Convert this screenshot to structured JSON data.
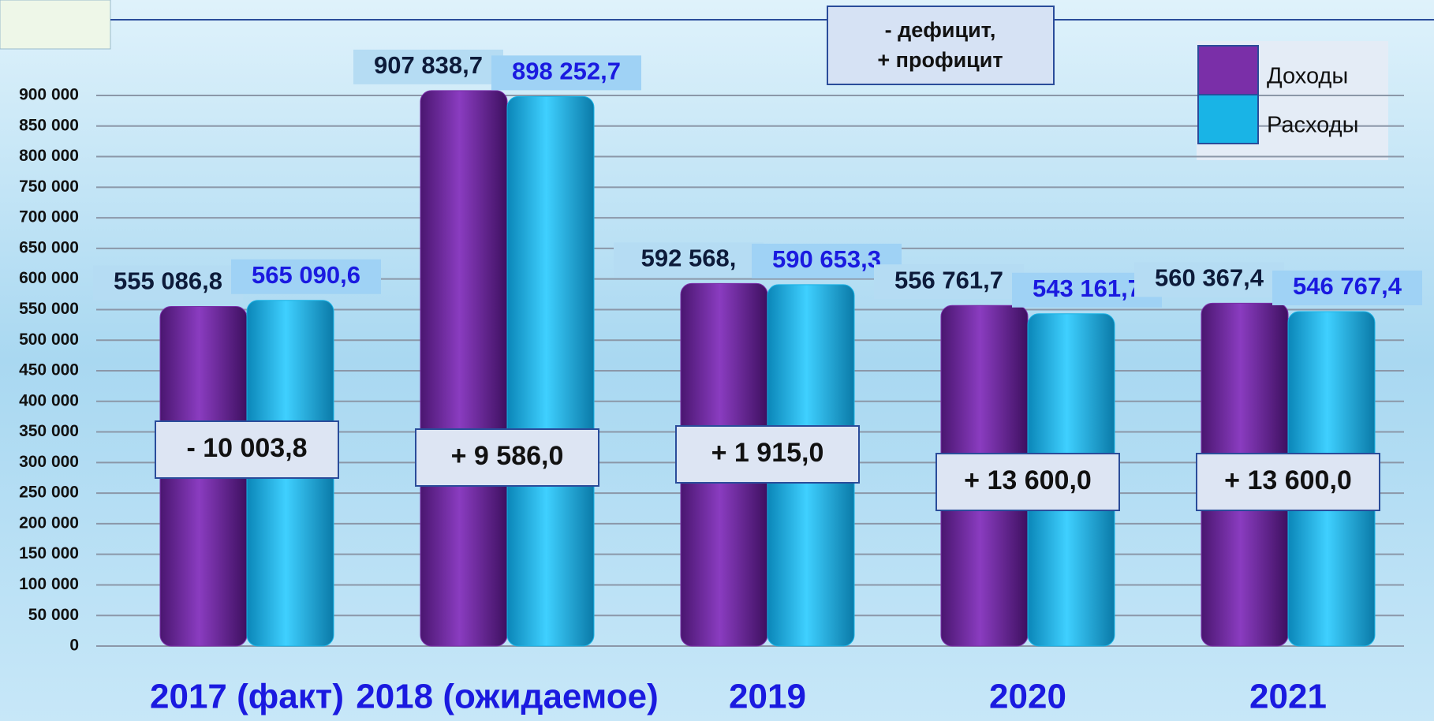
{
  "chart_data": {
    "type": "bar",
    "annotation": [
      "-  дефицит,",
      "+ профицит"
    ],
    "categories": [
      "2017 (факт)",
      "2018 (ожидаемое)",
      "2019",
      "2020",
      "2021"
    ],
    "series": [
      {
        "name": "Доходы",
        "color": "#7a2fa8",
        "values": [
          555086.8,
          907838.7,
          592568.3,
          556761.7,
          560367.4
        ],
        "value_labels": [
          "555 086,8",
          "907 838,7",
          "592 568,",
          "556 761,7",
          "560 367,4"
        ]
      },
      {
        "name": "Расходы",
        "color": "#19b4e6",
        "values": [
          565090.6,
          898252.7,
          590653.3,
          543161.7,
          546767.4
        ],
        "value_labels": [
          "565 090,6",
          "898 252,7",
          "590 653,3",
          "543 161,7",
          "546 767,4"
        ]
      }
    ],
    "balance_labels": [
      "- 10 003,8",
      "+ 9 586,0",
      "+ 1 915,0",
      "+ 13 600,0",
      "+ 13 600,0"
    ],
    "ylim": [
      0,
      900000
    ],
    "yticks": [
      0,
      {
        "value": 50000,
        "label": "50 000"
      },
      {
        "value": 100000,
        "label": "100 000"
      },
      {
        "value": 150000,
        "label": "150 000"
      },
      {
        "value": 200000,
        "label": "200 000"
      },
      {
        "value": 250000,
        "label": "250 000"
      },
      {
        "value": 300000,
        "label": "300 000"
      },
      {
        "value": 350000,
        "label": "350 000"
      },
      {
        "value": 400000,
        "label": "400 000"
      },
      {
        "value": 450000,
        "label": "450 000"
      },
      {
        "value": 500000,
        "label": "500 000"
      },
      {
        "value": 550000,
        "label": "550 000"
      },
      {
        "value": 600000,
        "label": "600 000"
      },
      {
        "value": 650000,
        "label": "650 000"
      },
      {
        "value": 700000,
        "label": "700 000"
      },
      {
        "value": 750000,
        "label": "750 000"
      },
      {
        "value": 800000,
        "label": "800 000"
      },
      {
        "value": 850000,
        "label": "850 000"
      },
      {
        "value": 900000,
        "label": "900 000"
      }
    ],
    "grid": true,
    "legend": "top-right"
  }
}
